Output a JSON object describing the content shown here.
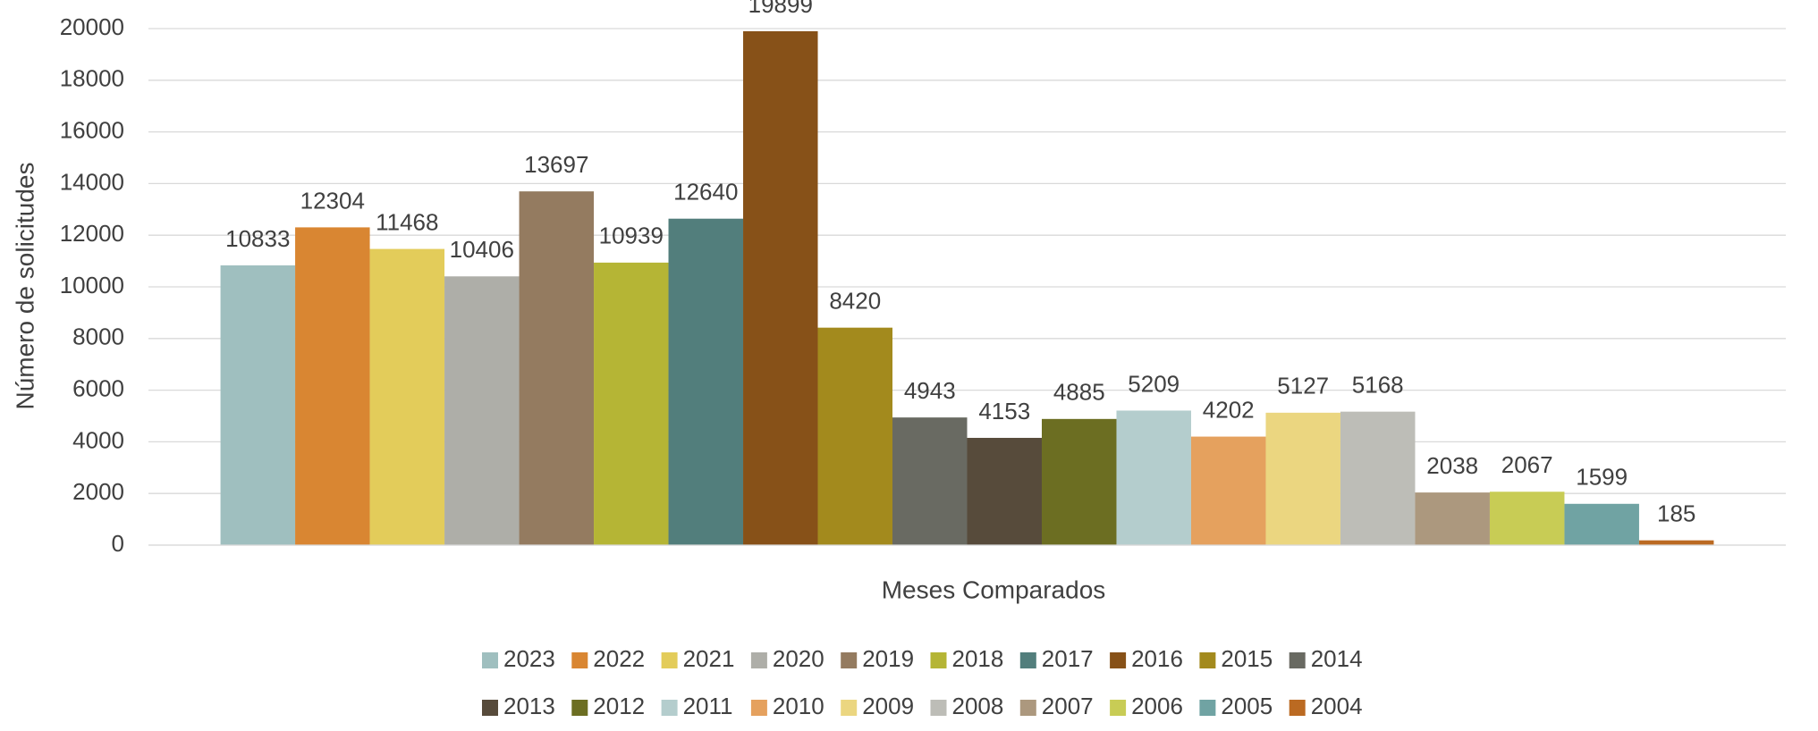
{
  "chart_data": {
    "type": "bar",
    "y_label": "Número de solicitudes",
    "x_label": "Meses Comparados",
    "categories": [
      null
    ],
    "series": [
      {
        "name": "2023",
        "color": "#9fbfbf",
        "values": [
          10833
        ]
      },
      {
        "name": "2022",
        "color": "#d98632",
        "values": [
          12304
        ]
      },
      {
        "name": "2021",
        "color": "#e3cc5a",
        "values": [
          11468
        ]
      },
      {
        "name": "2020",
        "color": "#aeaea8",
        "values": [
          10406
        ]
      },
      {
        "name": "2019",
        "color": "#947b60",
        "values": [
          13697
        ]
      },
      {
        "name": "2018",
        "color": "#b5b535",
        "values": [
          10939
        ]
      },
      {
        "name": "2017",
        "color": "#527e7c",
        "values": [
          12640
        ]
      },
      {
        "name": "2016",
        "color": "#875118",
        "values": [
          19899
        ]
      },
      {
        "name": "2015",
        "color": "#a38a1d",
        "values": [
          8420
        ]
      },
      {
        "name": "2014",
        "color": "#696a62",
        "values": [
          4943
        ]
      },
      {
        "name": "2013",
        "color": "#574b3b",
        "values": [
          4153
        ]
      },
      {
        "name": "2012",
        "color": "#6c6e22",
        "values": [
          4885
        ]
      },
      {
        "name": "2011",
        "color": "#b4cdcd",
        "values": [
          5209
        ]
      },
      {
        "name": "2010",
        "color": "#e5a15e",
        "values": [
          4202
        ]
      },
      {
        "name": "2009",
        "color": "#ebd680",
        "values": [
          5127
        ]
      },
      {
        "name": "2008",
        "color": "#bdbdb7",
        "values": [
          5168
        ]
      },
      {
        "name": "2007",
        "color": "#ac987e",
        "values": [
          2038
        ]
      },
      {
        "name": "2006",
        "color": "#c8cc55",
        "values": [
          2067
        ]
      },
      {
        "name": "2005",
        "color": "#70a3a3",
        "values": [
          1599
        ]
      },
      {
        "name": "2004",
        "color": "#bb6a22",
        "values": [
          185
        ]
      }
    ],
    "ylim": [
      0,
      20000
    ],
    "yticks": [
      0,
      2000,
      4000,
      6000,
      8000,
      10000,
      12000,
      14000,
      16000,
      18000,
      20000
    ],
    "grid": true,
    "legend": "bottom"
  }
}
